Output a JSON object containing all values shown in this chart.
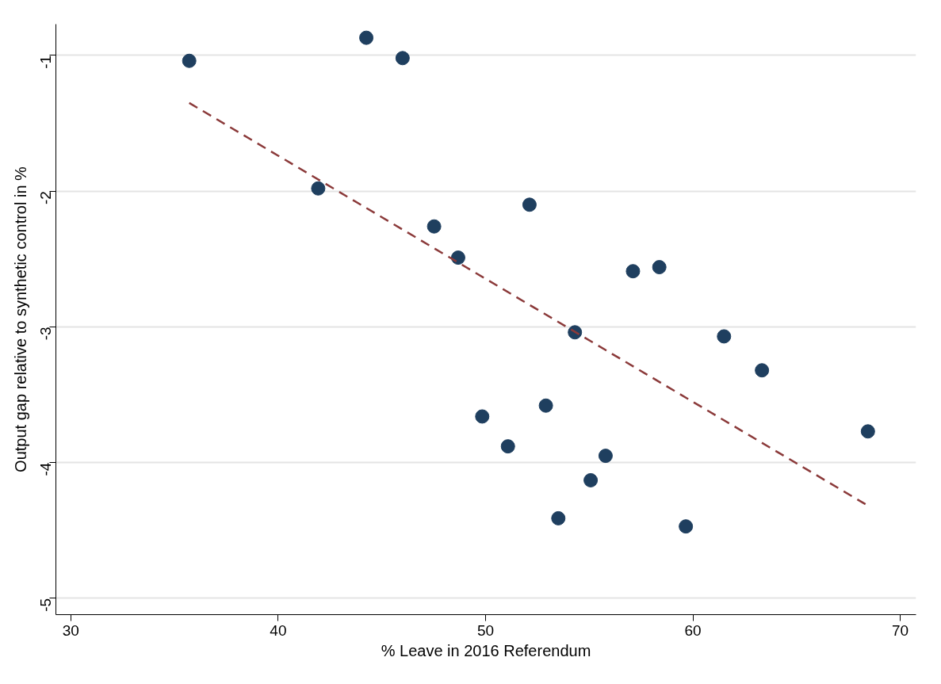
{
  "chart_data": {
    "type": "scatter",
    "xlabel": "% Leave in 2016 Referendum",
    "ylabel": "Output gap relative to synthetic control in %",
    "xlim": [
      29.28,
      70.76
    ],
    "ylim": [
      -5.12,
      -0.77
    ],
    "xticks": [
      30,
      40,
      50,
      60,
      70
    ],
    "yticks": [
      -5,
      -4,
      -3,
      -2,
      -1
    ],
    "grid": "y",
    "series": [
      {
        "marker": "circle",
        "color": "#1f3f5f",
        "x": [
          35.71,
          44.25,
          46.0,
          41.93,
          47.52,
          48.68,
          52.12,
          57.11,
          58.38,
          54.31,
          61.5,
          63.33,
          68.44,
          49.84,
          52.91,
          51.08,
          55.79,
          55.07,
          53.51,
          59.66
        ],
        "values": [
          -1.04,
          -0.87,
          -1.02,
          -1.98,
          -2.26,
          -2.49,
          -2.1,
          -2.59,
          -2.56,
          -3.04,
          -3.07,
          -3.32,
          -3.77,
          -3.66,
          -3.58,
          -3.88,
          -3.95,
          -4.13,
          -4.41,
          -4.47
        ]
      },
      {
        "type": "line",
        "color": "#8b3a3a",
        "line_style": "dashed",
        "x": [
          35.71,
          68.36
        ],
        "values": [
          -1.35,
          -4.31
        ]
      }
    ]
  }
}
